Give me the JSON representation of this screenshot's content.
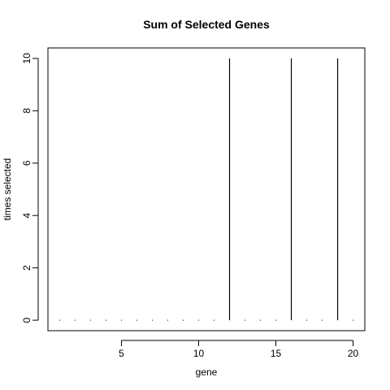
{
  "chart_data": {
    "type": "bar",
    "style": "histogram-type vertical lines",
    "title": "Sum of Selected Genes",
    "xlabel": "gene",
    "ylabel": "times selected",
    "x": [
      1,
      2,
      3,
      4,
      5,
      6,
      7,
      8,
      9,
      10,
      11,
      12,
      13,
      14,
      15,
      16,
      17,
      18,
      19,
      20
    ],
    "values": [
      0,
      0,
      0,
      0,
      0,
      0,
      0,
      0,
      0,
      0,
      0,
      10,
      0,
      0,
      0,
      10,
      0,
      0,
      10,
      0
    ],
    "xlim": [
      0.24,
      20.76
    ],
    "ylim": [
      -0.4,
      10.4
    ],
    "x_ticks": [
      5,
      10,
      15,
      20
    ],
    "y_ticks": [
      0,
      2,
      4,
      6,
      8,
      10
    ],
    "grid": false,
    "legend": "none",
    "colors": {
      "mark": "#000000",
      "axis": "#000000",
      "background": "#ffffff"
    }
  }
}
